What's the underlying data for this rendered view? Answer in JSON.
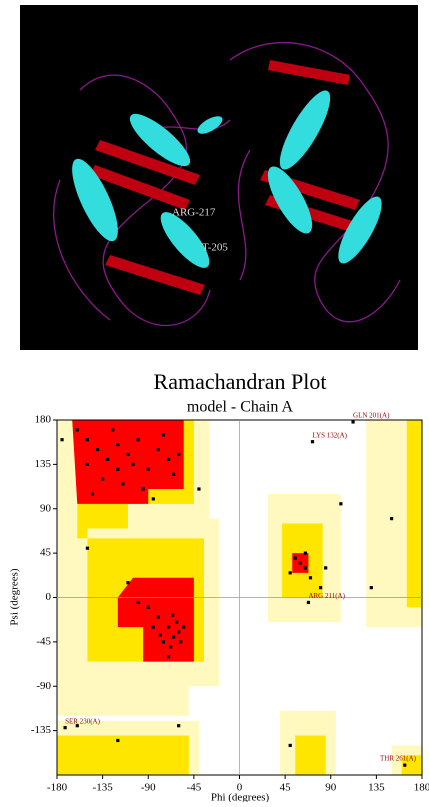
{
  "image": {
    "labels": [
      "ARG-217",
      "T-205"
    ]
  },
  "chart_data": {
    "type": "scatter",
    "title": "Ramachandran Plot",
    "subtitle": "model - Chain A",
    "x_label": "Phi (degrees)",
    "y_label": "Psi (degrees)",
    "xlim": [
      -180,
      180
    ],
    "ylim": [
      -180,
      180
    ],
    "xticks": [
      -180,
      -135,
      -90,
      -45,
      0,
      45,
      90,
      135,
      180
    ],
    "yticks": [
      -135,
      -90,
      -45,
      0,
      45,
      90,
      135,
      180
    ],
    "color": "#000000",
    "x": [
      -150,
      -140,
      -130,
      -120,
      -110,
      -100,
      -90,
      -80,
      -70,
      -135,
      -150,
      -160,
      -125,
      -115,
      -95,
      -85,
      -60,
      -65,
      -75,
      -145,
      -105,
      -120,
      -175,
      -65,
      -60,
      -70,
      -75,
      -68,
      -62,
      -80,
      -90,
      -85,
      -70,
      -58,
      -100,
      -55,
      -78,
      -66,
      55,
      60,
      65,
      70,
      80,
      50,
      85,
      65,
      -110,
      -150,
      -60,
      -120,
      -160,
      130,
      150,
      -40,
      100,
      50
    ],
    "values": [
      160,
      150,
      140,
      130,
      145,
      160,
      130,
      150,
      140,
      120,
      135,
      170,
      170,
      115,
      110,
      100,
      145,
      125,
      165,
      105,
      135,
      155,
      160,
      -40,
      -35,
      -30,
      -45,
      -50,
      -25,
      -20,
      -10,
      -30,
      -60,
      -45,
      -5,
      -30,
      -38,
      -18,
      40,
      35,
      30,
      20,
      10,
      25,
      30,
      45,
      15,
      50,
      -130,
      -145,
      -130,
      10,
      80,
      110,
      95,
      -150
    ],
    "outliers": {
      "color": "#990000",
      "labels": [
        "GLN 201(A)",
        "LYS 132(A)",
        "ARG 211(A)",
        "SER 230(A)",
        "THR 261(A)"
      ],
      "x": [
        112,
        72,
        68,
        -172,
        163
      ],
      "values": [
        178,
        158,
        -5,
        -132,
        -170
      ]
    }
  }
}
